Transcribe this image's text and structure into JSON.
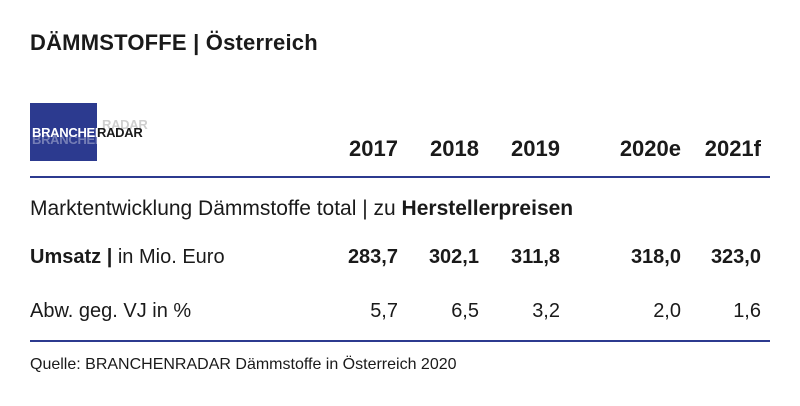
{
  "title": "DÄMMSTOFFE | Österreich",
  "logo": {
    "text": "BRANCHENRADAR",
    "brand_color": "#2c3a8f"
  },
  "years": [
    "2017",
    "2018",
    "2019",
    "2020e",
    "2021f"
  ],
  "section": {
    "prefix": "Marktentwicklung Dämmstoffe total | zu ",
    "emphasis": "Herstellerpreisen"
  },
  "rows": [
    {
      "label_bold": "Umsatz |",
      "label_rest": " in Mio. Euro",
      "values": [
        "283,7",
        "302,1",
        "311,8",
        "318,0",
        "323,0"
      ]
    },
    {
      "label_bold": "",
      "label_rest": "Abw. geg. VJ in %",
      "values": [
        "5,7",
        "6,5",
        "3,2",
        "2,0",
        "1,6"
      ]
    }
  ],
  "source": "Quelle: BRANCHENRADAR Dämmstoffe in Österreich 2020"
}
